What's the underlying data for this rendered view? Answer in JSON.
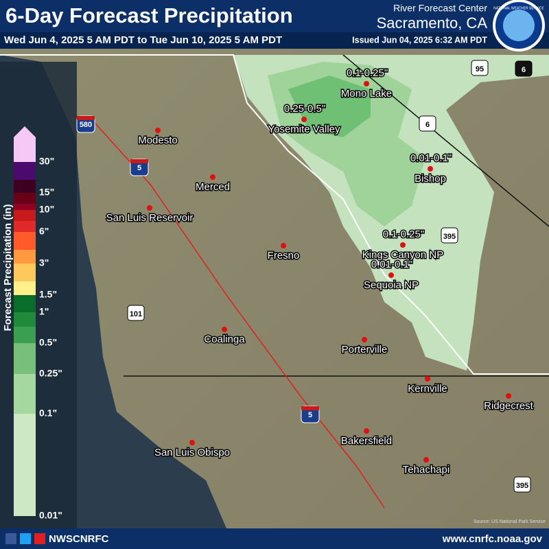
{
  "header": {
    "title": "6-Day Forecast Precipitation",
    "period": "Wed Jun 4, 2025 5 AM PDT to Tue Jun 10, 2025 5 AM PDT",
    "issued": "Issued Jun 04, 2025 6:32 AM PDT",
    "office": "River Forecast Center",
    "location": "Sacramento, CA",
    "logo": "NATIONAL WEATHER SERVICE"
  },
  "legend": {
    "title": "Forecast Precipitation (in)",
    "labels": [
      "30\"",
      "15\"",
      "10\"",
      "6\"",
      "3\"",
      "1.5\"",
      "1\"",
      "0.5\"",
      "0.25\"",
      "0.1\"",
      "0.01\""
    ]
  },
  "places": [
    {
      "name": "Modesto"
    },
    {
      "name": "Merced"
    },
    {
      "name": "San Luis Reservoir"
    },
    {
      "name": "Fresno"
    },
    {
      "name": "Coalinga"
    },
    {
      "name": "Porterville"
    },
    {
      "name": "San Luis Obispo"
    },
    {
      "name": "Bakersfield"
    },
    {
      "name": "Tehachapi"
    },
    {
      "name": "Kernville"
    },
    {
      "name": "Ridgecrest"
    },
    {
      "name": "Bishop",
      "amount": "0.01-0.1\""
    },
    {
      "name": "Mono Lake",
      "amount": "0.1-0.25\""
    },
    {
      "name": "Yosemite Valley",
      "amount": "0.25-0.5\""
    },
    {
      "name": "Kings Canyon NP",
      "amount": "0.1-0.25\""
    },
    {
      "name": "Sequoia NP",
      "amount": "0.01-0.1\""
    }
  ],
  "shields": [
    "580",
    "5",
    "5",
    "101",
    "95",
    "6",
    "6",
    "395",
    "395"
  ],
  "source": "Source: US National Park Service",
  "footer": {
    "handle": "NWSCNRFC",
    "url": "www.cnrfc.noaa.gov"
  }
}
